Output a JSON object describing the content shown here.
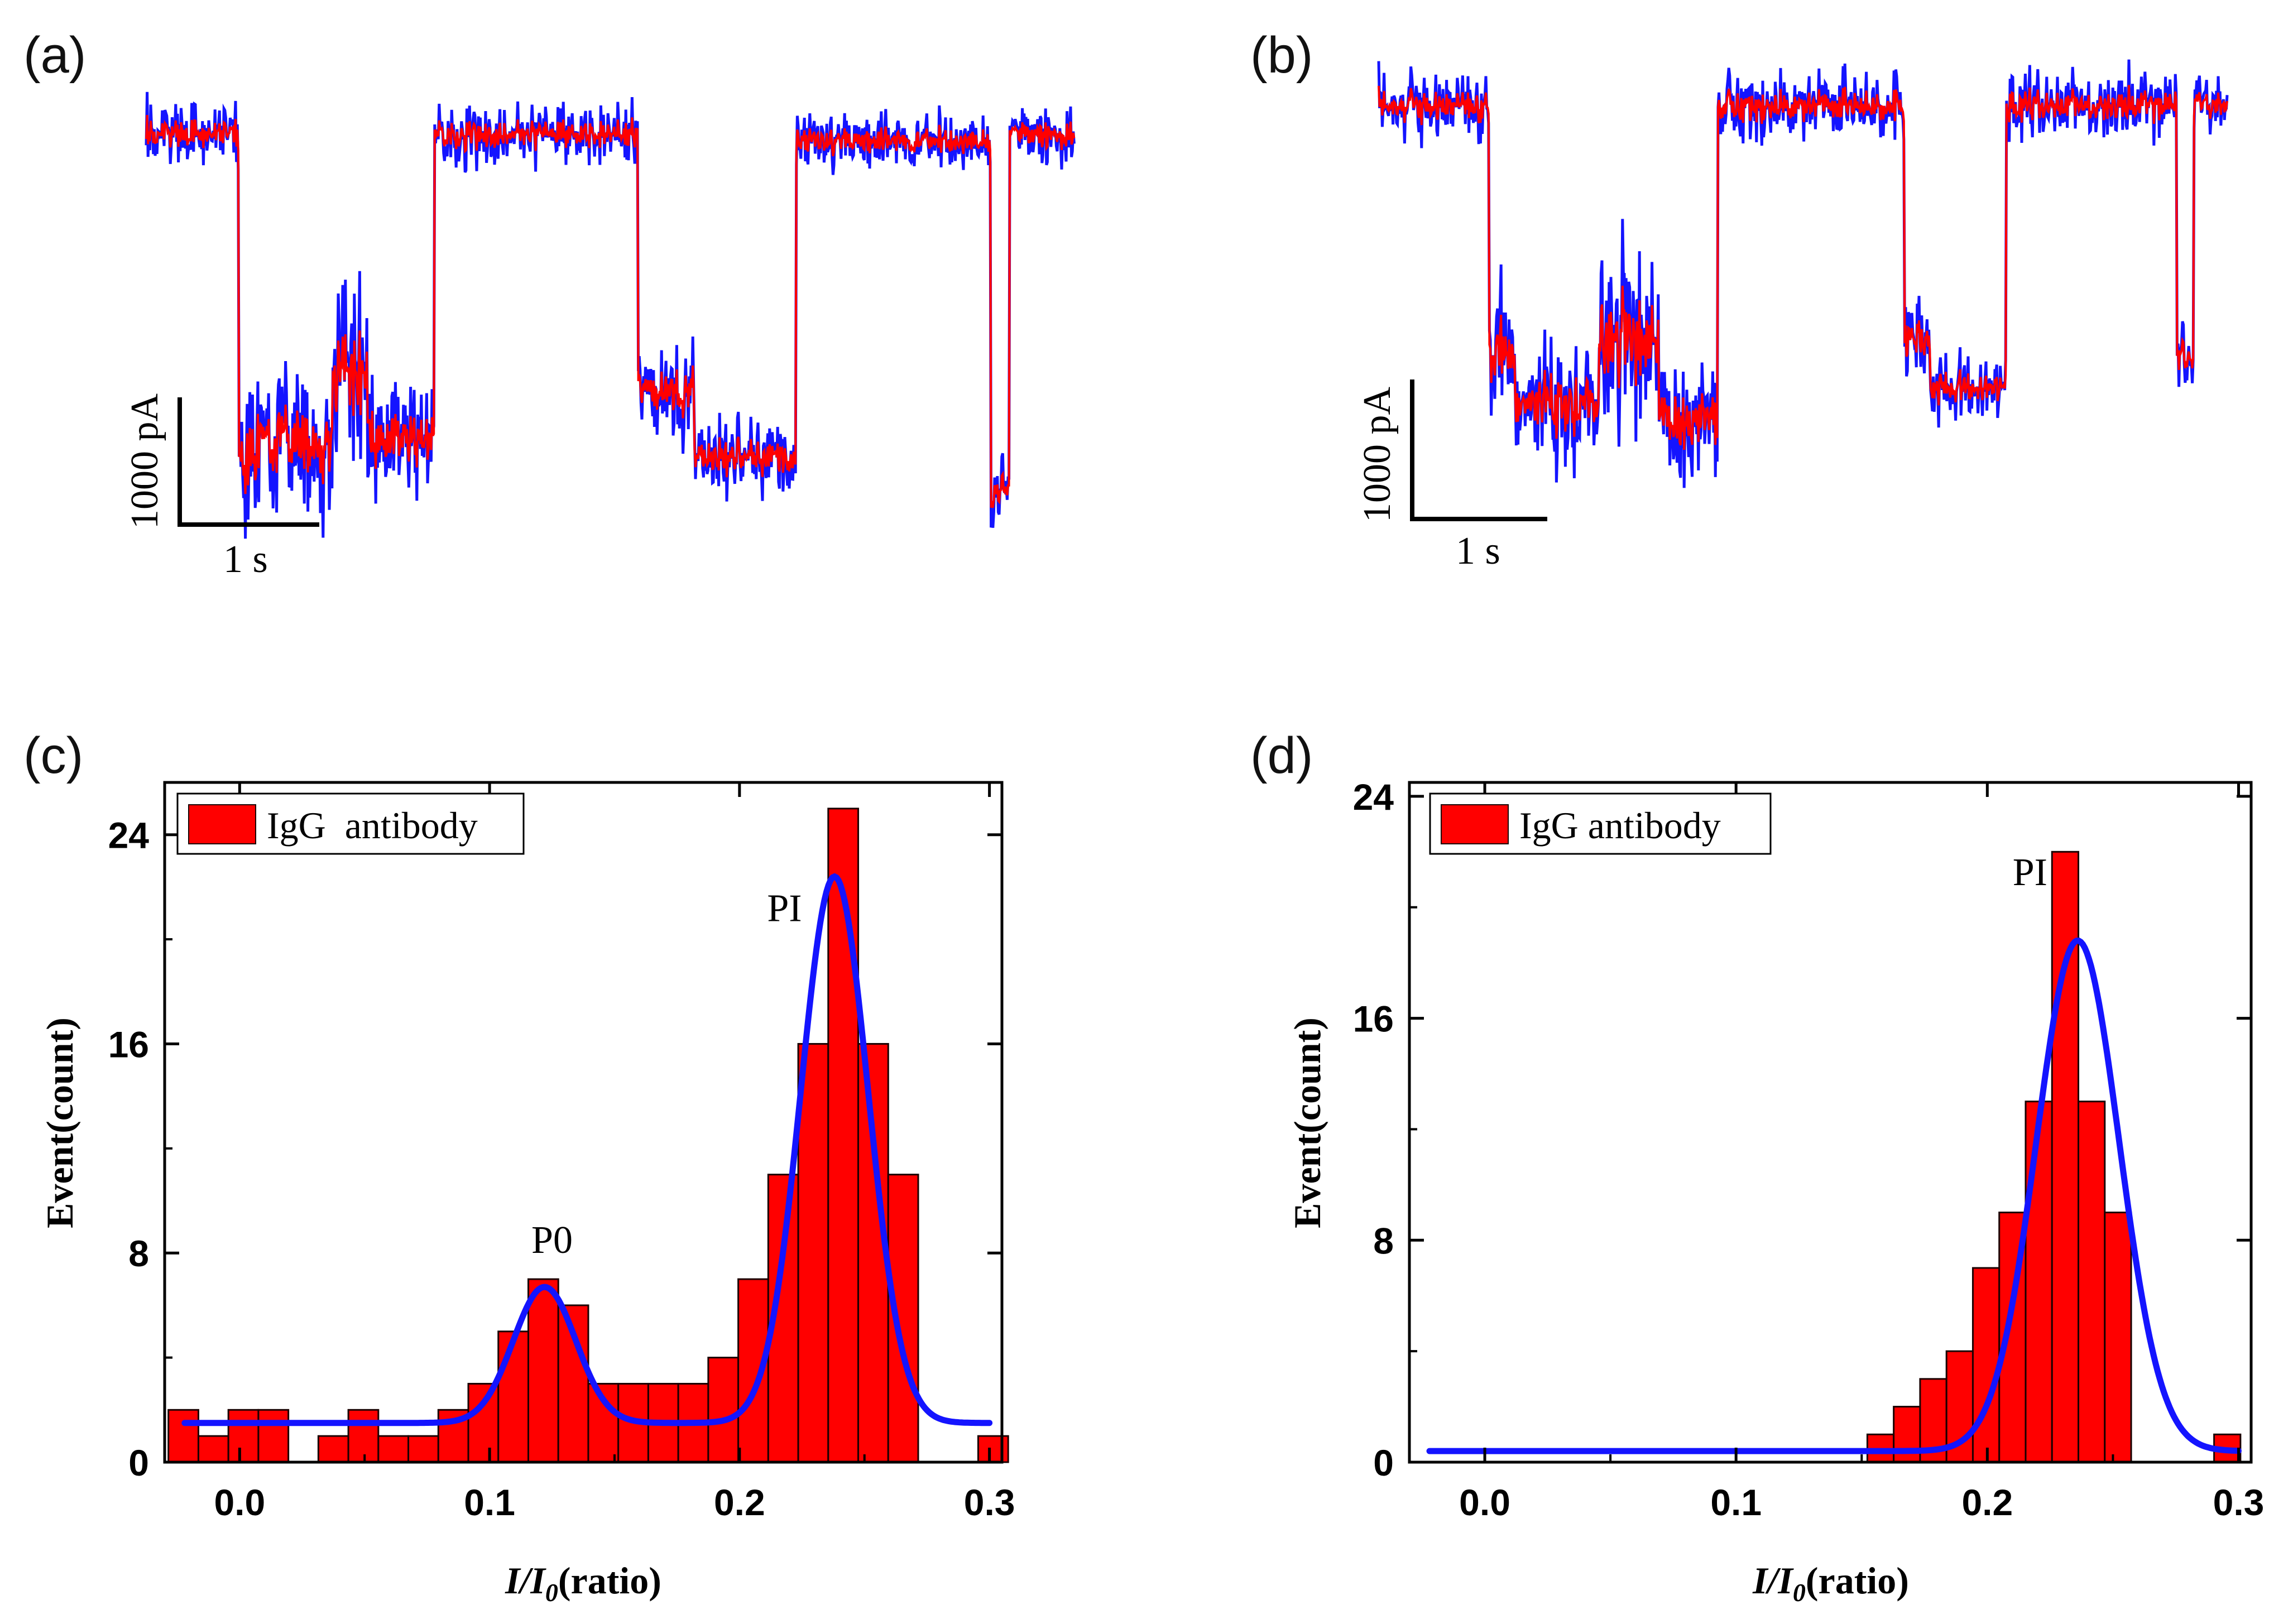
{
  "panels": {
    "a": {
      "label": "(a)"
    },
    "b": {
      "label": "(b)"
    },
    "c": {
      "label": "(c)"
    },
    "d": {
      "label": "(d)"
    }
  },
  "colors": {
    "trace_raw": "#1414ff",
    "trace_fit": "#ff0000",
    "bar_fill": "#ff0000",
    "bar_edge": "#1a0000",
    "gauss_fit": "#1414ff",
    "axis": "#000000"
  },
  "traces": [
    {
      "panel": "a",
      "scale_current": "1000 pA",
      "scale_time": "1 s",
      "levels": [
        {
          "t0": 0.0,
          "t1": 0.1,
          "level": 0.0,
          "noise": 0.08
        },
        {
          "t0": 0.1,
          "t1": 0.12,
          "level": 0.95,
          "noise": 0.28
        },
        {
          "t0": 0.12,
          "t1": 0.2,
          "level": 0.9,
          "noise": 0.2
        },
        {
          "t0": 0.2,
          "t1": 0.24,
          "level": 0.72,
          "noise": 0.3
        },
        {
          "t0": 0.24,
          "t1": 0.31,
          "level": 0.9,
          "noise": 0.18
        },
        {
          "t0": 0.31,
          "t1": 0.53,
          "level": 0.0,
          "noise": 0.08
        },
        {
          "t0": 0.53,
          "t1": 0.59,
          "level": 0.75,
          "noise": 0.14
        },
        {
          "t0": 0.59,
          "t1": 0.7,
          "level": 0.95,
          "noise": 0.1
        },
        {
          "t0": 0.7,
          "t1": 0.91,
          "level": 0.02,
          "noise": 0.08
        },
        {
          "t0": 0.91,
          "t1": 0.93,
          "level": 1.05,
          "noise": 0.1
        },
        {
          "t0": 0.93,
          "t1": 1.0,
          "level": 0.0,
          "noise": 0.08
        }
      ]
    },
    {
      "panel": "b",
      "scale_current": "1000 pA",
      "scale_time": "1 s",
      "levels": [
        {
          "t0": 0.0,
          "t1": 0.13,
          "level": 0.0,
          "noise": 0.1
        },
        {
          "t0": 0.13,
          "t1": 0.16,
          "level": 0.8,
          "noise": 0.2
        },
        {
          "t0": 0.16,
          "t1": 0.26,
          "level": 0.95,
          "noise": 0.18
        },
        {
          "t0": 0.26,
          "t1": 0.33,
          "level": 0.75,
          "noise": 0.3
        },
        {
          "t0": 0.33,
          "t1": 0.4,
          "level": 1.0,
          "noise": 0.18
        },
        {
          "t0": 0.4,
          "t1": 0.62,
          "level": 0.0,
          "noise": 0.1
        },
        {
          "t0": 0.62,
          "t1": 0.65,
          "level": 0.75,
          "noise": 0.12
        },
        {
          "t0": 0.65,
          "t1": 0.74,
          "level": 0.9,
          "noise": 0.1
        },
        {
          "t0": 0.74,
          "t1": 0.94,
          "level": 0.0,
          "noise": 0.1
        },
        {
          "t0": 0.94,
          "t1": 0.96,
          "level": 0.8,
          "noise": 0.1
        },
        {
          "t0": 0.96,
          "t1": 1.0,
          "level": 0.0,
          "noise": 0.08
        }
      ]
    }
  ],
  "chart_data": [
    {
      "panel": "c",
      "type": "bar",
      "title": "",
      "xlabel": "I/I0(ratio)",
      "ylabel": "Event(count)",
      "xlim": [
        -0.03,
        0.305
      ],
      "ylim": [
        0,
        26
      ],
      "xticks": [
        "0.0",
        "0.1",
        "0.2",
        "0.3"
      ],
      "xtick_values": [
        0.0,
        0.1,
        0.2,
        0.3
      ],
      "yticks": [
        "0",
        "8",
        "16",
        "24"
      ],
      "ytick_values": [
        0,
        8,
        16,
        24
      ],
      "legend": "IgG  antibody",
      "bin_width": 0.012,
      "x": [
        -0.0225,
        -0.0105,
        0.0015,
        0.0135,
        0.0255,
        0.0375,
        0.0495,
        0.0615,
        0.0735,
        0.0855,
        0.0975,
        0.1095,
        0.1215,
        0.1335,
        0.1455,
        0.1575,
        0.1695,
        0.1815,
        0.1935,
        0.2055,
        0.2175,
        0.2295,
        0.2415,
        0.2535,
        0.2655,
        0.2775,
        0.2895,
        0.3015
      ],
      "values": [
        2,
        1,
        2,
        2,
        0,
        1,
        2,
        1,
        1,
        2,
        3,
        5,
        7,
        6,
        3,
        3,
        3,
        3,
        4,
        7,
        11,
        16,
        25,
        16,
        11,
        0,
        0,
        1
      ],
      "fit": {
        "name": "Gaussian fit",
        "baseline": 1.5,
        "peaks": [
          {
            "center": 0.122,
            "sigma": 0.0125,
            "height": 5.2
          },
          {
            "center": 0.238,
            "sigma": 0.0135,
            "height": 20.9
          }
        ],
        "x_range": [
          -0.022,
          0.3
        ]
      },
      "annotations": [
        {
          "text": "P0",
          "x": 0.125,
          "y": 8.0
        },
        {
          "text": "PI",
          "x": 0.218,
          "y": 20.7
        }
      ]
    },
    {
      "panel": "d",
      "type": "bar",
      "title": "",
      "xlabel": "I/I0(ratio)",
      "ylabel": "Event(count)",
      "xlim": [
        -0.03,
        0.305
      ],
      "ylim": [
        0,
        24.5
      ],
      "xticks": [
        "0.0",
        "0.1",
        "0.2",
        "0.3"
      ],
      "xtick_values": [
        0.0,
        0.1,
        0.2,
        0.3
      ],
      "yticks": [
        "0",
        "8",
        "16",
        "24"
      ],
      "ytick_values": [
        0,
        8,
        16,
        24
      ],
      "legend": "IgG antibody",
      "bin_width": 0.0105,
      "x": [
        0.1575,
        0.168,
        0.1785,
        0.189,
        0.1995,
        0.21,
        0.2205,
        0.231,
        0.2415,
        0.252,
        0.2625,
        0.2955
      ],
      "values": [
        1,
        2,
        3,
        4,
        7,
        9,
        13,
        22,
        13,
        9,
        0,
        1
      ],
      "fit": {
        "name": "Gaussian fit",
        "baseline": 0.4,
        "peaks": [
          {
            "center": 0.236,
            "sigma": 0.0165,
            "height": 18.4
          }
        ],
        "x_range": [
          -0.022,
          0.3
        ]
      },
      "annotations": [
        {
          "text": "PI",
          "x": 0.217,
          "y": 20.8
        }
      ]
    }
  ]
}
